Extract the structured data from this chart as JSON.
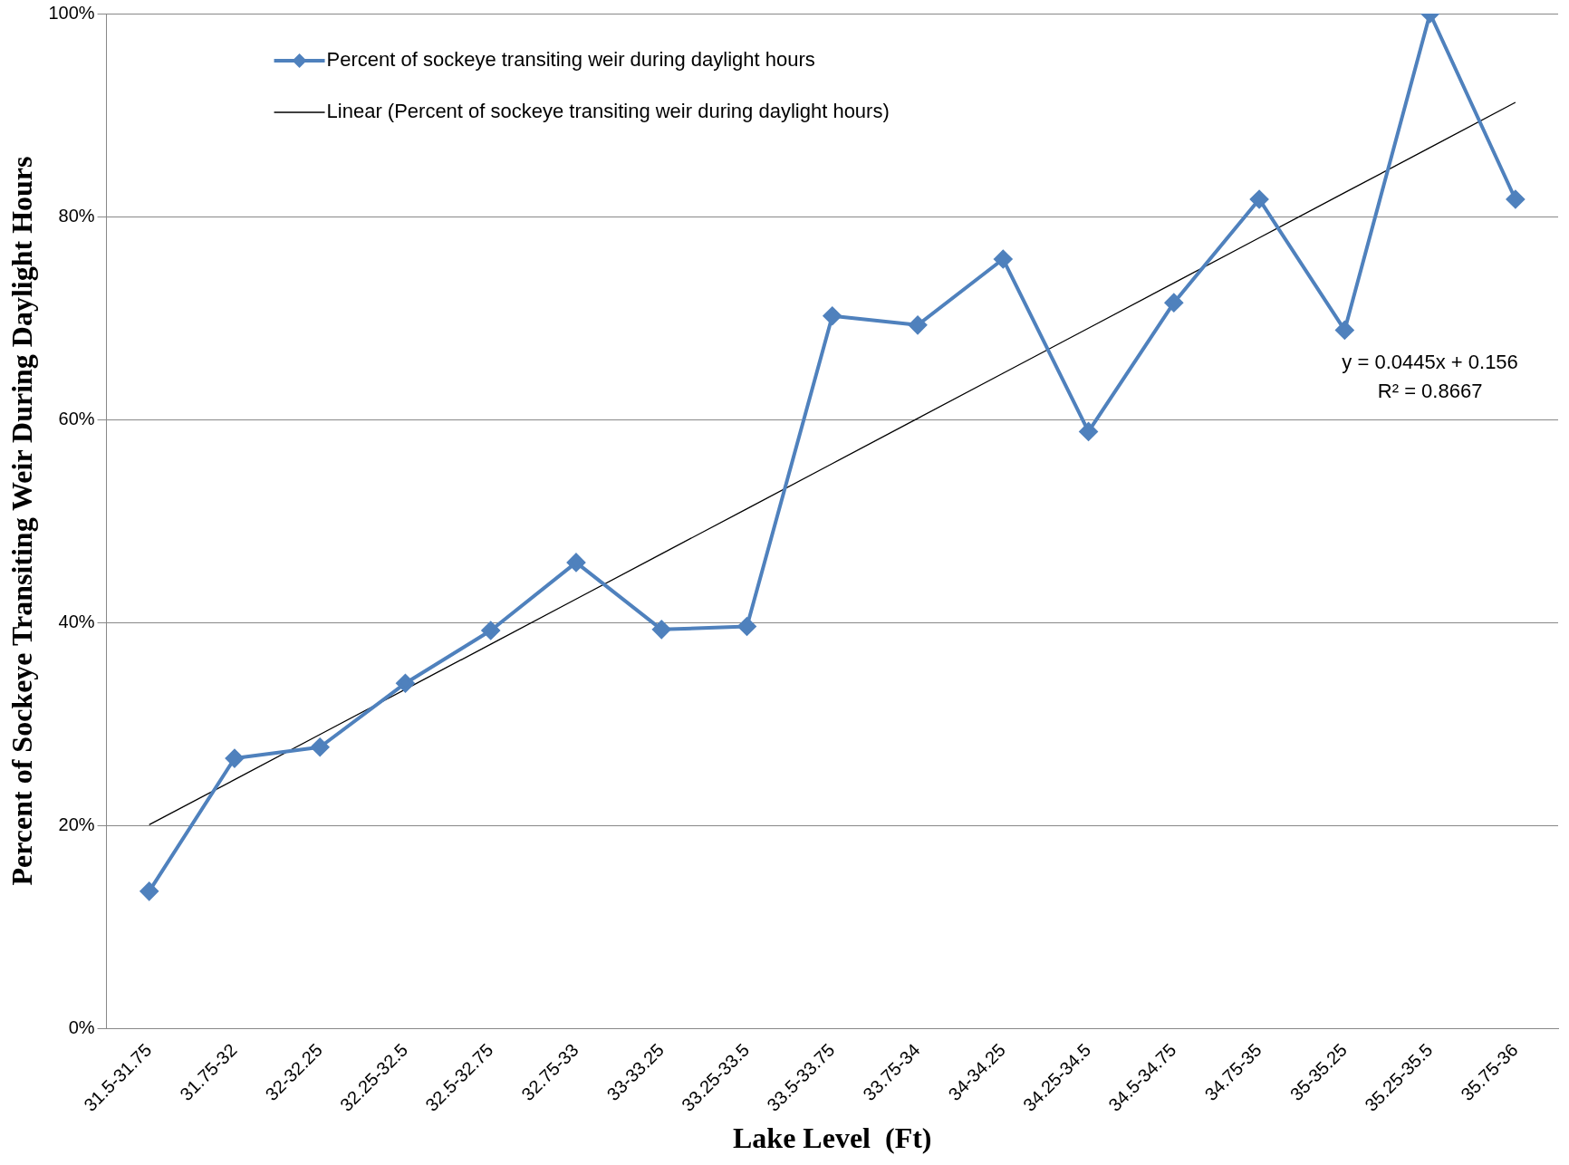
{
  "chart_data": {
    "type": "line",
    "xlabel": "Lake Level  (Ft)",
    "ylabel": "Percent of Sockeye Transiting Weir During Daylight Hours",
    "categories": [
      "31.5-31.75",
      "31.75-32",
      "32-32.25",
      "32.25-32.5",
      "32.5-32.75",
      "32.75-33",
      "33-33.25",
      "33.25-33.5",
      "33.5-33.75",
      "33.75-34",
      "34-34.25",
      "34.25-34.5",
      "34.5-34.75",
      "34.75-35",
      "35-35.25",
      "35.25-35.5",
      "35.75-36"
    ],
    "series": [
      {
        "name": "Percent of sockeye transiting weir during daylight hours",
        "color": "#4f81bd",
        "marker": "diamond",
        "values": [
          13.5,
          26.6,
          27.7,
          34.0,
          39.2,
          45.9,
          39.3,
          39.6,
          70.2,
          69.3,
          75.8,
          58.8,
          71.5,
          81.7,
          68.8,
          100,
          81.7
        ]
      },
      {
        "name": "Linear (Percent of sockeye transiting weir during daylight hours)",
        "color": "#000000",
        "marker": "none",
        "values": [
          20.05,
          24.5,
          28.95,
          33.4,
          37.85,
          42.3,
          46.75,
          51.2,
          55.65,
          60.1,
          64.55,
          69.0,
          73.45,
          77.9,
          82.35,
          86.8,
          91.25
        ]
      }
    ],
    "ylim": [
      0,
      100
    ],
    "yticks": [
      {
        "value": 0,
        "label": "0%"
      },
      {
        "value": 20,
        "label": "20%"
      },
      {
        "value": 40,
        "label": "40%"
      },
      {
        "value": 60,
        "label": "60%"
      },
      {
        "value": 80,
        "label": "80%"
      },
      {
        "value": 100,
        "label": "100%"
      }
    ],
    "grid": "y",
    "legend": "top left",
    "line_style": "solid",
    "annotations": [
      "y = 0.0445x + 0.156",
      "R² = 0.8667"
    ]
  }
}
